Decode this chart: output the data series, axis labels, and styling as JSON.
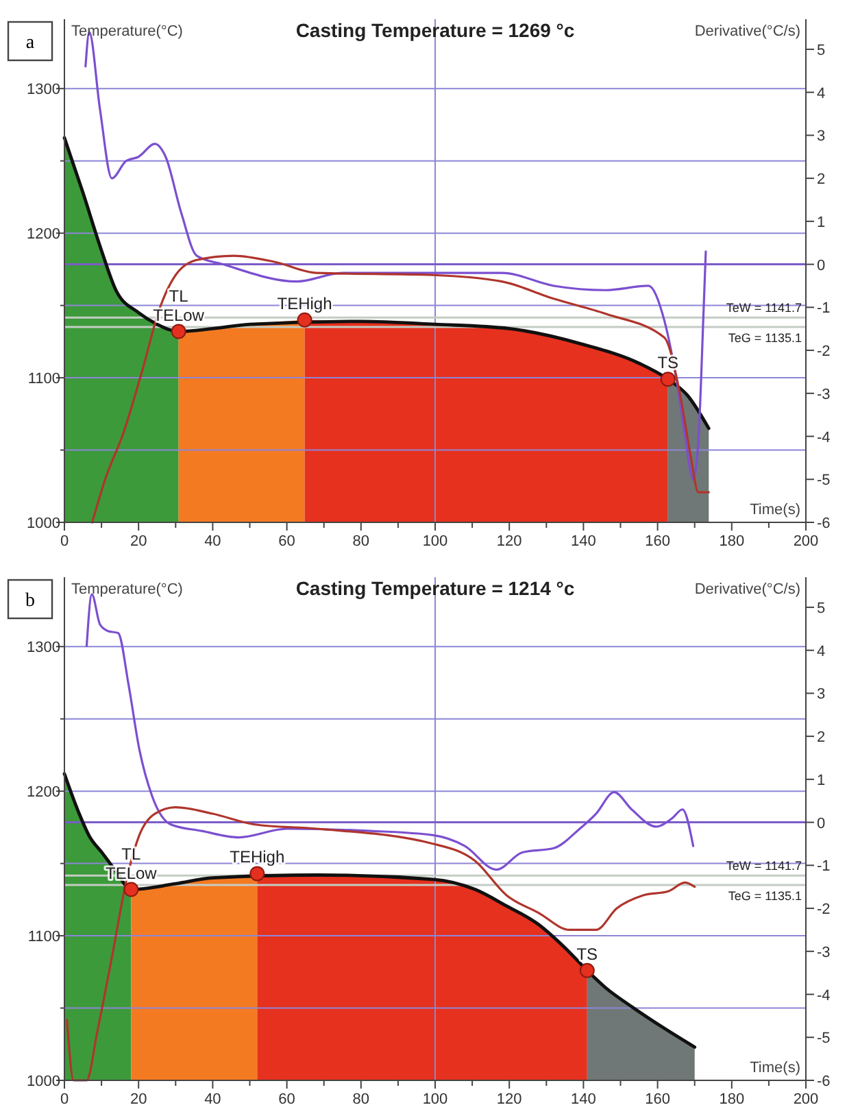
{
  "chart_data": [
    {
      "type": "line",
      "title": "Casting Temperature = 1269 °c",
      "xlabel": "Time(s)",
      "ylabel": "Temperature(°C)",
      "y2label": "Derivative(°C/s)",
      "xlim": [
        0,
        200
      ],
      "xticks": [
        0,
        {
          "value": 10,
          "label": null
        },
        20,
        {
          "value": 30,
          "label": null
        },
        40,
        {
          "value": 50,
          "label": null
        },
        60,
        {
          "value": 70,
          "label": null
        },
        80,
        {
          "value": 90,
          "label": null
        },
        100,
        {
          "value": 110,
          "label": null
        },
        120,
        {
          "value": 130,
          "label": null
        },
        140,
        {
          "value": 150,
          "label": null
        },
        160,
        {
          "value": 170,
          "label": null
        },
        180,
        {
          "value": 190,
          "label": null
        },
        200
      ],
      "ylim": [
        1000,
        1348
      ],
      "yticks": [
        1000,
        {
          "value": 1050,
          "label": null
        },
        1100,
        {
          "value": 1150,
          "label": null
        },
        1200,
        {
          "value": 1250,
          "label": null
        },
        1300
      ],
      "y2lim": [
        -6,
        5.7
      ],
      "y2ticks": [
        -6,
        -5,
        -4,
        -3,
        -2,
        -1,
        0,
        1,
        2,
        3,
        4,
        5
      ],
      "grid": "y",
      "ref_lines": [
        {
          "axis": "x",
          "value": 100,
          "label": null,
          "color": "#8a86d6"
        },
        {
          "axis": "y2",
          "value": 0,
          "label": null,
          "color": "#7b5cc8"
        },
        {
          "axis": "y",
          "value": 1141.7,
          "label": "TeW = 1141.7",
          "color": "#c4ccc4"
        },
        {
          "axis": "y",
          "value": 1135.1,
          "label": "TeG = 1135.1",
          "color": "#c4ccc4"
        }
      ],
      "annotations": [
        "a",
        {
          "text": "TELow",
          "x": 30.8,
          "y": 1132
        },
        {
          "text": "TL",
          "x": 30.8,
          "y": 1132
        },
        {
          "text": "TEHigh",
          "x": 64.8,
          "y": 1140
        },
        {
          "text": "TS",
          "x": 162.8,
          "y": 1099
        }
      ],
      "series": [
        {
          "type": "area",
          "color": "#3c9a3a",
          "x": [
            0,
            5,
            10,
            14,
            20,
            25,
            30.8
          ],
          "values": [
            1266,
            1228,
            1188,
            1160,
            1145,
            1137,
            1132
          ]
        },
        {
          "type": "area",
          "color": "#f47a22",
          "x": [
            30.8,
            40,
            50,
            64.8
          ],
          "values": [
            1132,
            1134,
            1137,
            1140
          ]
        },
        {
          "type": "area",
          "color": "#e6311e",
          "x": [
            64.8,
            80,
            100,
            120,
            140,
            155,
            162.8
          ],
          "values": [
            1140,
            1139,
            1137,
            1134,
            1123,
            1110,
            1099
          ]
        },
        {
          "type": "area",
          "color": "#6f7876",
          "x": [
            162.8,
            168,
            173.8
          ],
          "values": [
            1099,
            1088,
            1065
          ]
        },
        {
          "color": "#111111",
          "x": [
            0,
            5,
            10,
            14,
            20,
            25,
            30.8,
            40,
            50,
            80,
            100,
            120,
            140,
            155,
            162.8,
            168,
            173.8
          ],
          "values": [
            1266,
            1228,
            1188,
            1160,
            1145,
            1137,
            1132,
            1134,
            1137,
            1139,
            1137,
            1134,
            1123,
            1110,
            1099,
            1088,
            1065
          ]
        },
        {
          "axis": "y2",
          "color": "#7b4fd0",
          "x": [
            5.7,
            6.7,
            9.6,
            12.8,
            16.6,
            20,
            24.4,
            27.3,
            31.5,
            35.7,
            42.8,
            62.7,
            75,
            99.5,
            118,
            132,
            146,
            157.5,
            161.8,
            165.3,
            167.4,
            169.6,
            171,
            172.4,
            173
          ],
          "values": [
            4.6,
            5.4,
            3.6,
            2.0,
            2.4,
            2.5,
            2.8,
            2.5,
            1.2,
            0.2,
            0.0,
            -0.4,
            -0.2,
            -0.2,
            -0.2,
            -0.5,
            -0.6,
            -0.5,
            -1.3,
            -2.8,
            -4.0,
            -5.0,
            -4.1,
            -1.1,
            0.3
          ]
        },
        {
          "axis": "y2",
          "color": "#b0352c",
          "x": [
            7.5,
            11,
            16,
            20.9,
            25.8,
            30,
            35.7,
            45.7,
            57,
            68,
            99.5,
            118,
            132,
            146,
            161.8,
            166,
            168.8,
            171,
            173.8
          ],
          "values": [
            -6,
            -5.0,
            -3.9,
            -2.5,
            -1.0,
            -0.25,
            0.1,
            0.2,
            0.05,
            -0.2,
            -0.25,
            -0.4,
            -0.8,
            -1.15,
            -1.7,
            -3.0,
            -4.4,
            -5.3,
            -5.3
          ]
        },
        {
          "type": "scatter",
          "marker": "circle",
          "color": "#e53020",
          "x": [
            30.8,
            64.8,
            162.8
          ],
          "values": [
            1132,
            1140,
            1099
          ]
        }
      ]
    },
    {
      "type": "line",
      "title": "Casting Temperature = 1214 °c",
      "xlabel": "Time(s)",
      "ylabel": "Temperature(°C)",
      "y2label": "Derivative(°C/s)",
      "xlim": [
        0,
        200
      ],
      "xticks": [
        0,
        {
          "value": 10,
          "label": null
        },
        20,
        {
          "value": 30,
          "label": null
        },
        40,
        {
          "value": 50,
          "label": null
        },
        60,
        {
          "value": 70,
          "label": null
        },
        80,
        {
          "value": 90,
          "label": null
        },
        100,
        {
          "value": 110,
          "label": null
        },
        120,
        {
          "value": 130,
          "label": null
        },
        140,
        {
          "value": 150,
          "label": null
        },
        160,
        {
          "value": 170,
          "label": null
        },
        180,
        {
          "value": 190,
          "label": null
        },
        200
      ],
      "ylim": [
        1000,
        1348
      ],
      "yticks": [
        1000,
        {
          "value": 1050,
          "label": null
        },
        1100,
        {
          "value": 1150,
          "label": null
        },
        1200,
        {
          "value": 1250,
          "label": null
        },
        1300
      ],
      "y2lim": [
        -6,
        5.7
      ],
      "y2ticks": [
        -6,
        -5,
        -4,
        -3,
        -2,
        -1,
        0,
        1,
        2,
        3,
        4,
        5
      ],
      "grid": "y",
      "ref_lines": [
        {
          "axis": "x",
          "value": 100,
          "label": null,
          "color": "#8a86d6"
        },
        {
          "axis": "y2",
          "value": 0,
          "label": null,
          "color": "#7b5cc8"
        },
        {
          "axis": "y",
          "value": 1141.7,
          "label": "TeW = 1141.7",
          "color": "#c4ccc4"
        },
        {
          "axis": "y",
          "value": 1135.1,
          "label": "TeG = 1135.1",
          "color": "#c4ccc4"
        }
      ],
      "annotations": [
        "b",
        {
          "text": "TELow",
          "x": 18,
          "y": 1132
        },
        {
          "text": "TL",
          "x": 18,
          "y": 1132
        },
        {
          "text": "TEHigh",
          "x": 52,
          "y": 1143
        },
        {
          "text": "TS",
          "x": 141,
          "y": 1076
        }
      ],
      "series": [
        {
          "type": "area",
          "color": "#3c9a3a",
          "x": [
            0,
            3.9,
            6.7,
            10.3,
            13.8,
            18
          ],
          "values": [
            1212,
            1185,
            1169,
            1157,
            1145,
            1132
          ]
        },
        {
          "type": "area",
          "color": "#f47a22",
          "x": [
            18,
            30,
            40,
            52
          ],
          "values": [
            1132,
            1136,
            1140,
            1143
          ]
        },
        {
          "type": "area",
          "color": "#e6311e",
          "x": [
            52,
            68.3,
            99.5,
            110.8,
            119,
            127.8,
            134.9,
            141
          ],
          "values": [
            1143,
            1142,
            1139,
            1132,
            1121,
            1108,
            1092,
            1076
          ]
        },
        {
          "type": "area",
          "color": "#6f7876",
          "x": [
            141,
            146,
            153,
            161.8,
            170
          ],
          "values": [
            1076,
            1064,
            1051,
            1036,
            1023
          ]
        },
        {
          "color": "#111111",
          "x": [
            0,
            3.9,
            6.7,
            10.3,
            13.8,
            18,
            30,
            40,
            68.3,
            99.5,
            110.8,
            119,
            127.8,
            134.9,
            141,
            146,
            153,
            161.8,
            170
          ],
          "values": [
            1212,
            1185,
            1169,
            1157,
            1145,
            1132,
            1136,
            1140,
            1142,
            1139,
            1132,
            1121,
            1108,
            1092,
            1076,
            1064,
            1051,
            1036,
            1023
          ]
        },
        {
          "axis": "y2",
          "color": "#7b4fd0",
          "x": [
            6,
            7.4,
            9.6,
            11.7,
            14.5,
            17.3,
            20.2,
            23.7,
            28.7,
            37,
            47,
            60,
            82.5,
            99.5,
            108,
            116.5,
            123.5,
            132,
            139,
            143.4,
            148.3,
            153,
            159.6,
            164,
            166.7,
            169.6
          ],
          "values": [
            4.1,
            5.3,
            4.6,
            4.45,
            4.4,
            3.2,
            1.7,
            0.6,
            -0.05,
            -0.2,
            -0.35,
            -0.15,
            -0.2,
            -0.3,
            -0.55,
            -1.1,
            -0.7,
            -0.6,
            -0.15,
            0.2,
            0.7,
            0.3,
            -0.1,
            0.1,
            0.3,
            -0.55
          ]
        },
        {
          "axis": "y2",
          "color": "#b0352c",
          "x": [
            0.7,
            2.5,
            6,
            8.8,
            13.1,
            16.6,
            20.2,
            24.4,
            30,
            40,
            51.3,
            68.3,
            99.5,
            110.8,
            119.3,
            127.8,
            136.3,
            143.4,
            149,
            156,
            163,
            167.4,
            170
          ],
          "values": [
            -4.6,
            -6,
            -6,
            -4.9,
            -3.0,
            -1.4,
            -0.3,
            0.2,
            0.35,
            0.2,
            -0.05,
            -0.15,
            -0.5,
            -0.9,
            -1.7,
            -2.1,
            -2.5,
            -2.5,
            -2.0,
            -1.7,
            -1.6,
            -1.4,
            -1.5
          ]
        },
        {
          "type": "scatter",
          "marker": "circle",
          "color": "#e53020",
          "x": [
            18,
            52,
            141
          ],
          "values": [
            1132,
            1143,
            1076
          ]
        }
      ]
    }
  ]
}
